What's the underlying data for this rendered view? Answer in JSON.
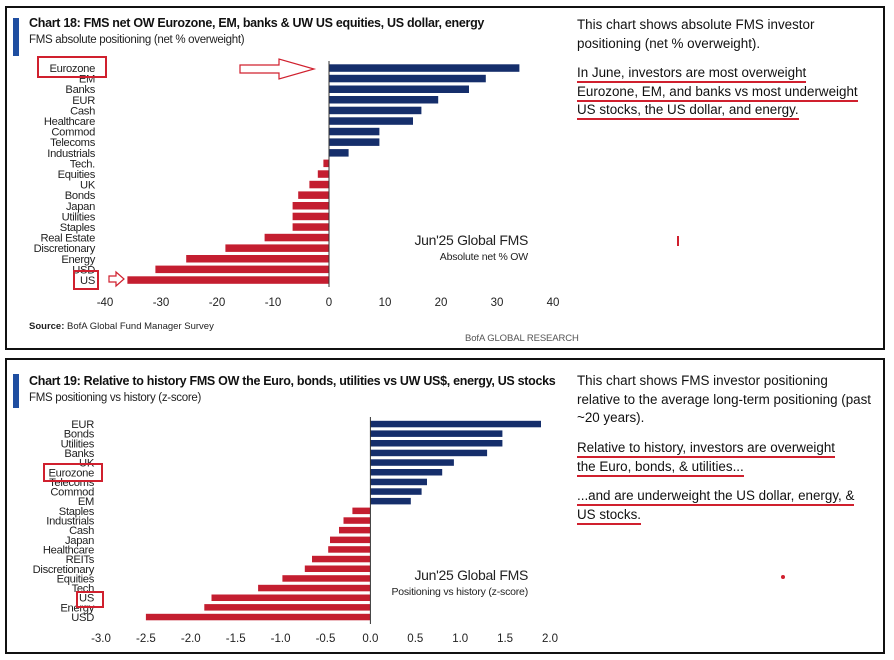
{
  "colors": {
    "positive": "#152e6b",
    "negative": "#c41e30",
    "highlight": "#d0202e",
    "accent": "#1f4ea1"
  },
  "chart1": {
    "title": "Chart 18: FMS net OW Eurozone, EM, banks & UW US equities, US dollar, energy",
    "subtitle": "FMS absolute positioning (net % overweight)",
    "annotation": "Jun'25 Global FMS",
    "annotation_sub": "Absolute net % OW",
    "source_label": "Source:",
    "source_text": " BofA Global Fund Manager Survey",
    "brand": "BofA GLOBAL RESEARCH",
    "note1": "This chart shows absolute FMS investor positioning (net % overweight).",
    "note2_lines": [
      "In June, investors are most overweight",
      "Eurozone, EM, and banks vs most underweight",
      "US stocks, the US dollar, and energy."
    ]
  },
  "chart2": {
    "title": "Chart 19: Relative to history FMS OW the Euro, bonds, utilities vs UW US$, energy, US stocks",
    "subtitle": "FMS positioning vs history (z-score)",
    "annotation": "Jun'25 Global FMS",
    "annotation_sub": "Positioning vs history (z-score)",
    "note1": "This chart shows FMS investor positioning relative to the average long-term positioning (past ~20 years).",
    "note2_lines": [
      "Relative to history, investors are overweight",
      "the Euro, bonds, & utilities..."
    ],
    "note3_lines": [
      "...and are underweight the US dollar, energy, &",
      "US stocks."
    ]
  },
  "chart_data": [
    {
      "type": "bar",
      "orientation": "horizontal",
      "title": "Chart 18: FMS net OW Eurozone, EM, banks & UW US equities, US dollar, energy",
      "subtitle": "FMS absolute positioning (net % overweight)",
      "categories": [
        "Eurozone",
        "EM",
        "Banks",
        "EUR",
        "Cash",
        "Healthcare",
        "Commod",
        "Telecoms",
        "Industrials",
        "Tech.",
        "Equities",
        "UK",
        "Bonds",
        "Japan",
        "Utilities",
        "Staples",
        "Real Estate",
        "Discretionary",
        "Energy",
        "USD",
        "US"
      ],
      "values": [
        34,
        28,
        25,
        19.5,
        16.5,
        15,
        9,
        9,
        3.5,
        -1,
        -2,
        -3.5,
        -5.5,
        -6.5,
        -6.5,
        -6.5,
        -11.5,
        -18.5,
        -25.5,
        -31,
        -36
      ],
      "xlim": [
        -40,
        40
      ],
      "xticks": [
        -40,
        -30,
        -20,
        -10,
        0,
        10,
        20,
        30,
        40
      ],
      "highlighted": [
        "Eurozone",
        "US"
      ],
      "grid": false
    },
    {
      "type": "bar",
      "orientation": "horizontal",
      "title": "Chart 19: Relative to history FMS OW the Euro, bonds, utilities vs UW US$, energy, US stocks",
      "subtitle": "FMS positioning vs history (z-score)",
      "categories": [
        "EUR",
        "Bonds",
        "Utilities",
        "Banks",
        "UK",
        "Eurozone",
        "Telecoms",
        "Commod",
        "EM",
        "Staples",
        "Industrials",
        "Cash",
        "Japan",
        "Healthcare",
        "REITs",
        "Discretionary",
        "Equities",
        "Tech",
        "US",
        "Energy",
        "USD"
      ],
      "values": [
        1.9,
        1.47,
        1.47,
        1.3,
        0.93,
        0.8,
        0.63,
        0.57,
        0.45,
        -0.2,
        -0.3,
        -0.35,
        -0.45,
        -0.47,
        -0.65,
        -0.73,
        -0.98,
        -1.25,
        -1.77,
        -1.85,
        -2.5
      ],
      "xlim": [
        -3.0,
        2.0
      ],
      "xticks": [
        "-3.0",
        "-2.5",
        "-2.0",
        "-1.5",
        "-1.0",
        "-0.5",
        "0.0",
        "0.5",
        "1.0",
        "1.5",
        "2.0"
      ],
      "highlighted": [
        "Eurozone",
        "US"
      ],
      "grid": false
    }
  ]
}
